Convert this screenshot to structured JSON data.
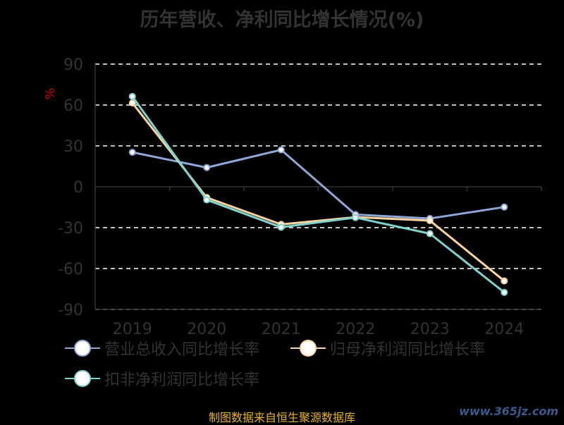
{
  "chart_data": {
    "type": "line",
    "title": "历年营收、净利同比增长情况(%)",
    "ylabel": "%",
    "categories": [
      "2019",
      "2020",
      "2021",
      "2022",
      "2023",
      "2024"
    ],
    "ylim": [
      -90,
      90
    ],
    "yticks": [
      90,
      60,
      30,
      0,
      -30,
      -60,
      -90
    ],
    "grid": true,
    "legend_position": "bottom-left",
    "series": [
      {
        "name": "营业总收入同比增长率",
        "color": "#8fa6d8",
        "values": [
          25.3,
          14.1,
          27.1,
          -20.4,
          -23.3,
          -14.9
        ]
      },
      {
        "name": "归母净利润同比增长率",
        "color": "#fdd49e",
        "values": [
          61.5,
          -7.9,
          -27.6,
          -22.3,
          -24.8,
          -69.1
        ]
      },
      {
        "name": "扣非净利润同比增长率",
        "color": "#7fd3cf",
        "values": [
          66.3,
          -9.6,
          -29.7,
          -22.6,
          -34.4,
          -77.5
        ]
      }
    ]
  },
  "footer": {
    "source": "制图数据来自恒生聚源数据库",
    "watermark": "www.365jz.com"
  }
}
